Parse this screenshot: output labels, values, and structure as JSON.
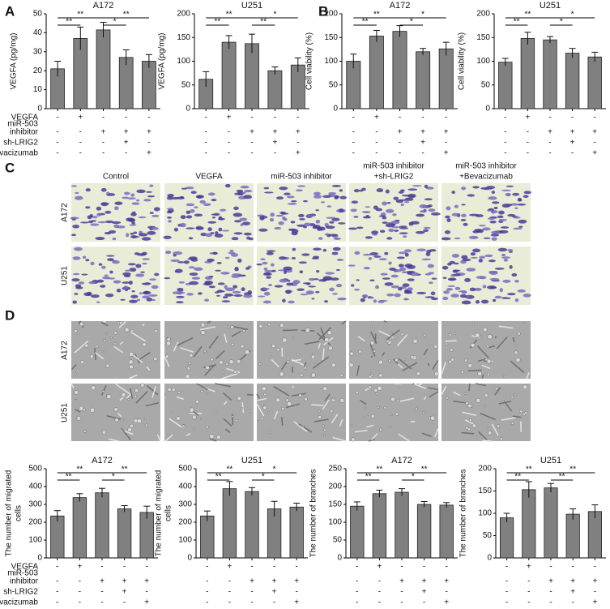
{
  "panel_labels": [
    "A",
    "B",
    "C",
    "D"
  ],
  "treatments": {
    "rows": [
      {
        "label": [
          "VEGFA"
        ],
        "signs": [
          "-",
          "+",
          "-",
          "-",
          "-"
        ]
      },
      {
        "label": [
          "miR-503",
          "inhibitor"
        ],
        "signs": [
          "-",
          "-",
          "+",
          "+",
          "+"
        ]
      },
      {
        "label": [
          "sh-LRIG2"
        ],
        "signs": [
          "-",
          "-",
          "-",
          "+",
          "-"
        ]
      },
      {
        "label": [
          "Bevacizumab"
        ],
        "signs": [
          "-",
          "-",
          "-",
          "-",
          "+"
        ]
      }
    ]
  },
  "image_panels": {
    "C": {
      "columns": [
        [
          "Control"
        ],
        [
          "VEGFA"
        ],
        [
          "miR-503 inhibitor"
        ],
        [
          "miR-503 inhibitor",
          "+sh-LRIG2"
        ],
        [
          "miR-503 inhibitor",
          "+Bevacizumab"
        ]
      ],
      "rows": [
        "A172",
        "U251"
      ]
    },
    "D": {
      "rows": [
        "A172",
        "U251"
      ]
    }
  },
  "chart_data": [
    {
      "type": "bar",
      "title": "A172",
      "ylabel": "VEGFA (pg/mg)",
      "categories": [
        null,
        null,
        null,
        null,
        null
      ],
      "values": [
        21,
        37,
        41.5,
        27,
        25
      ],
      "errors": [
        4,
        6,
        4,
        4,
        3.5
      ],
      "ylim": [
        0,
        50
      ],
      "yticks": [
        0,
        10,
        20,
        30,
        40,
        50
      ],
      "color": "#808080",
      "significance": [
        {
          "from": 0,
          "to": 1,
          "label": "**"
        },
        {
          "from": 0,
          "to": 2,
          "label": "**"
        },
        {
          "from": 2,
          "to": 3,
          "label": "*"
        },
        {
          "from": 2,
          "to": 4,
          "label": "**"
        }
      ]
    },
    {
      "type": "bar",
      "title": "U251",
      "ylabel": "VEGFA (pg/mg)",
      "categories": [
        null,
        null,
        null,
        null,
        null
      ],
      "values": [
        62,
        140,
        137,
        80,
        92
      ],
      "errors": [
        16,
        14,
        20,
        8,
        15
      ],
      "ylim": [
        0,
        200
      ],
      "yticks": [
        0,
        50,
        100,
        150,
        200
      ],
      "color": "#808080",
      "significance": [
        {
          "from": 0,
          "to": 1,
          "label": "**"
        },
        {
          "from": 0,
          "to": 2,
          "label": "**"
        },
        {
          "from": 2,
          "to": 3,
          "label": "**"
        },
        {
          "from": 2,
          "to": 4,
          "label": "*"
        }
      ]
    },
    {
      "type": "bar",
      "title": "A172",
      "ylabel": "Cell viability (%)",
      "categories": [
        null,
        null,
        null,
        null,
        null
      ],
      "values": [
        100,
        153,
        163,
        120,
        126
      ],
      "errors": [
        15,
        12,
        12,
        7,
        14
      ],
      "ylim": [
        0,
        200
      ],
      "yticks": [
        0,
        50,
        100,
        150,
        200
      ],
      "color": "#808080",
      "significance": [
        {
          "from": 0,
          "to": 1,
          "label": "**"
        },
        {
          "from": 0,
          "to": 2,
          "label": "**"
        },
        {
          "from": 2,
          "to": 3,
          "label": "*"
        },
        {
          "from": 2,
          "to": 4,
          "label": "*"
        }
      ]
    },
    {
      "type": "bar",
      "title": "U251",
      "ylabel": "Cell viability (%)",
      "categories": [
        null,
        null,
        null,
        null,
        null
      ],
      "values": [
        98,
        148,
        145,
        117,
        109
      ],
      "errors": [
        8,
        13,
        7,
        10,
        10
      ],
      "ylim": [
        0,
        200
      ],
      "yticks": [
        0,
        50,
        100,
        150,
        200
      ],
      "color": "#808080",
      "significance": [
        {
          "from": 0,
          "to": 1,
          "label": "**"
        },
        {
          "from": 0,
          "to": 2,
          "label": "**"
        },
        {
          "from": 2,
          "to": 3,
          "label": "*"
        },
        {
          "from": 2,
          "to": 4,
          "label": "*"
        }
      ]
    },
    {
      "type": "bar",
      "title": "A172",
      "ylabel": [
        "The number of migrated",
        "cells"
      ],
      "categories": [
        null,
        null,
        null,
        null,
        null
      ],
      "values": [
        235,
        338,
        365,
        275,
        255
      ],
      "errors": [
        30,
        22,
        25,
        18,
        35
      ],
      "ylim": [
        0,
        500
      ],
      "yticks": [
        0,
        100,
        200,
        300,
        400,
        500
      ],
      "color": "#808080",
      "significance": [
        {
          "from": 0,
          "to": 1,
          "label": "**"
        },
        {
          "from": 0,
          "to": 2,
          "label": "**"
        },
        {
          "from": 2,
          "to": 3,
          "label": "*"
        },
        {
          "from": 2,
          "to": 4,
          "label": "**"
        }
      ]
    },
    {
      "type": "bar",
      "title": "U251",
      "ylabel": [
        "The number of migrated",
        "cells"
      ],
      "categories": [
        null,
        null,
        null,
        null,
        null
      ],
      "values": [
        235,
        388,
        372,
        275,
        285
      ],
      "errors": [
        28,
        40,
        22,
        42,
        22
      ],
      "ylim": [
        0,
        500
      ],
      "yticks": [
        0,
        100,
        200,
        300,
        400,
        500
      ],
      "color": "#808080",
      "significance": [
        {
          "from": 0,
          "to": 1,
          "label": "**"
        },
        {
          "from": 0,
          "to": 2,
          "label": "**"
        },
        {
          "from": 2,
          "to": 3,
          "label": "*"
        },
        {
          "from": 2,
          "to": 4,
          "label": "*"
        }
      ]
    },
    {
      "type": "bar",
      "title": "A172",
      "ylabel": "The number of branches",
      "categories": [
        null,
        null,
        null,
        null,
        null
      ],
      "values": [
        145,
        180,
        184,
        150,
        148
      ],
      "errors": [
        12,
        10,
        10,
        8,
        7
      ],
      "ylim": [
        0,
        250
      ],
      "yticks": [
        0,
        50,
        100,
        150,
        200,
        250
      ],
      "color": "#808080",
      "significance": [
        {
          "from": 0,
          "to": 1,
          "label": "**"
        },
        {
          "from": 0,
          "to": 2,
          "label": "**"
        },
        {
          "from": 2,
          "to": 3,
          "label": "*"
        },
        {
          "from": 2,
          "to": 4,
          "label": "**"
        }
      ]
    },
    {
      "type": "bar",
      "title": "U251",
      "ylabel": "The number of branches",
      "categories": [
        null,
        null,
        null,
        null,
        null
      ],
      "values": [
        90,
        153,
        157,
        98,
        104
      ],
      "errors": [
        10,
        18,
        10,
        12,
        15
      ],
      "ylim": [
        0,
        200
      ],
      "yticks": [
        0,
        50,
        100,
        150,
        200
      ],
      "color": "#808080",
      "significance": [
        {
          "from": 0,
          "to": 1,
          "label": "**"
        },
        {
          "from": 0,
          "to": 2,
          "label": "**"
        },
        {
          "from": 2,
          "to": 3,
          "label": "**"
        },
        {
          "from": 2,
          "to": 4,
          "label": "**"
        }
      ]
    }
  ]
}
